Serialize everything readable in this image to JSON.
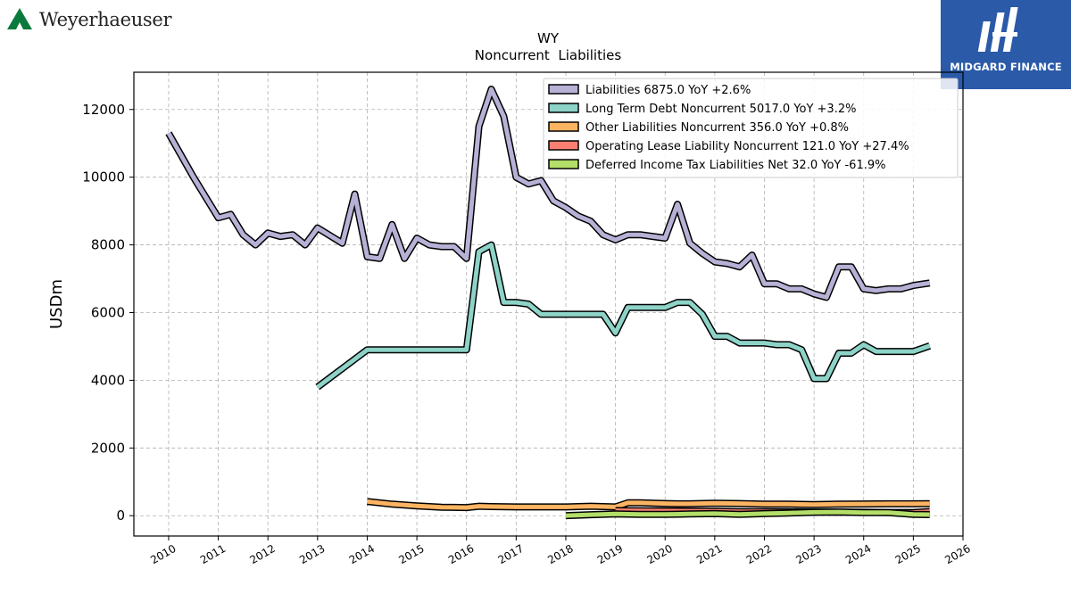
{
  "branding": {
    "company_name": "Weyerhaeuser",
    "partner_name": "MIDGARD FINANCE",
    "partner_color": "#2a5aa8",
    "company_color": "#0a7a3c"
  },
  "chart_data": {
    "type": "line",
    "title": "WY",
    "subtitle": "Noncurrent  Liabilities",
    "ylabel": "USDm",
    "xlabel": "",
    "xlim": [
      2009.3,
      2026.0
    ],
    "ylim": [
      -600,
      13100
    ],
    "x_ticks": [
      2010,
      2011,
      2012,
      2013,
      2014,
      2015,
      2016,
      2017,
      2018,
      2019,
      2020,
      2021,
      2022,
      2023,
      2024,
      2025,
      2026
    ],
    "y_ticks": [
      0,
      2000,
      4000,
      6000,
      8000,
      10000,
      12000
    ],
    "grid": true,
    "legend_position": "top-right",
    "series": [
      {
        "name": "Liabilities  6875.0 YoY +2.6%",
        "color": "#b7b1d6",
        "x": [
          2010.0,
          2010.5,
          2011.0,
          2011.25,
          2011.5,
          2011.75,
          2012.0,
          2012.25,
          2012.5,
          2012.75,
          2013.0,
          2013.5,
          2013.75,
          2014.0,
          2014.25,
          2014.5,
          2014.75,
          2015.0,
          2015.25,
          2015.5,
          2015.75,
          2016.0,
          2016.25,
          2016.5,
          2016.75,
          2017.0,
          2017.25,
          2017.5,
          2017.75,
          2018.0,
          2018.25,
          2018.5,
          2018.75,
          2019.0,
          2019.25,
          2019.5,
          2019.75,
          2020.0,
          2020.25,
          2020.5,
          2020.75,
          2021.0,
          2021.25,
          2021.5,
          2021.75,
          2022.0,
          2022.25,
          2022.5,
          2022.75,
          2023.0,
          2023.25,
          2023.5,
          2023.75,
          2024.0,
          2024.25,
          2024.5,
          2024.75,
          2025.0,
          2025.33
        ],
        "y": [
          11300,
          10000,
          8800,
          8900,
          8300,
          8000,
          8350,
          8250,
          8300,
          8000,
          8500,
          8050,
          9500,
          7650,
          7600,
          8600,
          7600,
          8200,
          8000,
          7950,
          7950,
          7600,
          11500,
          12600,
          11800,
          10000,
          9800,
          9900,
          9300,
          9100,
          8850,
          8700,
          8300,
          8150,
          8300,
          8300,
          8250,
          8200,
          9200,
          8050,
          7750,
          7500,
          7450,
          7350,
          7700,
          6850,
          6850,
          6700,
          6700,
          6550,
          6450,
          7350,
          7350,
          6700,
          6650,
          6700,
          6700,
          6800,
          6875
        ]
      },
      {
        "name": "Long Term Debt Noncurrent  5017.0 YoY +3.2%",
        "color": "#8dd3c7",
        "x": [
          2013.0,
          2014.0,
          2014.5,
          2015.0,
          2015.5,
          2016.0,
          2016.25,
          2016.5,
          2016.75,
          2017.0,
          2017.25,
          2017.5,
          2017.75,
          2018.0,
          2018.25,
          2018.5,
          2018.75,
          2019.0,
          2019.25,
          2019.5,
          2019.75,
          2020.0,
          2020.25,
          2020.5,
          2020.75,
          2021.0,
          2021.25,
          2021.5,
          2021.75,
          2022.0,
          2022.25,
          2022.5,
          2022.75,
          2023.0,
          2023.25,
          2023.5,
          2023.75,
          2024.0,
          2024.25,
          2024.5,
          2024.75,
          2025.0,
          2025.33
        ],
        "y": [
          3800,
          4900,
          4900,
          4900,
          4900,
          4900,
          7800,
          8000,
          6300,
          6300,
          6250,
          5950,
          5950,
          5950,
          5950,
          5950,
          5950,
          5400,
          6150,
          6150,
          6150,
          6150,
          6300,
          6300,
          5950,
          5300,
          5300,
          5100,
          5100,
          5100,
          5050,
          5050,
          4900,
          4050,
          4050,
          4800,
          4800,
          5050,
          4850,
          4850,
          4850,
          4850,
          5017
        ]
      },
      {
        "name": "Other Liabilities Noncurrent  356.0 YoY +0.8%",
        "color": "#fdb462",
        "x": [
          2014.0,
          2014.5,
          2015.0,
          2015.5,
          2016.0,
          2016.25,
          2016.5,
          2017.0,
          2017.5,
          2018.0,
          2018.25,
          2018.5,
          2019.0,
          2019.25,
          2019.5,
          2020.0,
          2020.25,
          2020.5,
          2021.0,
          2021.5,
          2022.0,
          2022.5,
          2023.0,
          2023.5,
          2024.0,
          2024.5,
          2025.0,
          2025.33
        ],
        "y": [
          420,
          340,
          290,
          250,
          240,
          280,
          270,
          260,
          260,
          260,
          270,
          280,
          260,
          380,
          380,
          360,
          350,
          350,
          370,
          360,
          340,
          340,
          330,
          340,
          345,
          350,
          350,
          356
        ]
      },
      {
        "name": "Operating Lease Liability Noncurrent  121.0 YoY +27.4%",
        "color": "#fb8072",
        "x": [
          2019.0,
          2019.5,
          2020.0,
          2020.5,
          2021.0,
          2021.5,
          2022.0,
          2022.5,
          2023.0,
          2023.5,
          2024.0,
          2024.5,
          2025.0,
          2025.33
        ],
        "y": [
          150,
          145,
          140,
          135,
          130,
          120,
          120,
          115,
          110,
          105,
          100,
          95,
          95,
          121
        ]
      },
      {
        "name": "Deferred Income Tax Liabilities Net  32.0 YoY -61.9%",
        "color": "#b3de69",
        "x": [
          2018.0,
          2018.5,
          2019.0,
          2019.5,
          2020.0,
          2020.5,
          2021.0,
          2021.5,
          2022.0,
          2022.5,
          2023.0,
          2023.5,
          2024.0,
          2024.5,
          2025.0,
          2025.33
        ],
        "y": [
          0,
          30,
          50,
          40,
          40,
          50,
          60,
          40,
          60,
          80,
          100,
          110,
          90,
          90,
          40,
          32
        ]
      }
    ]
  }
}
